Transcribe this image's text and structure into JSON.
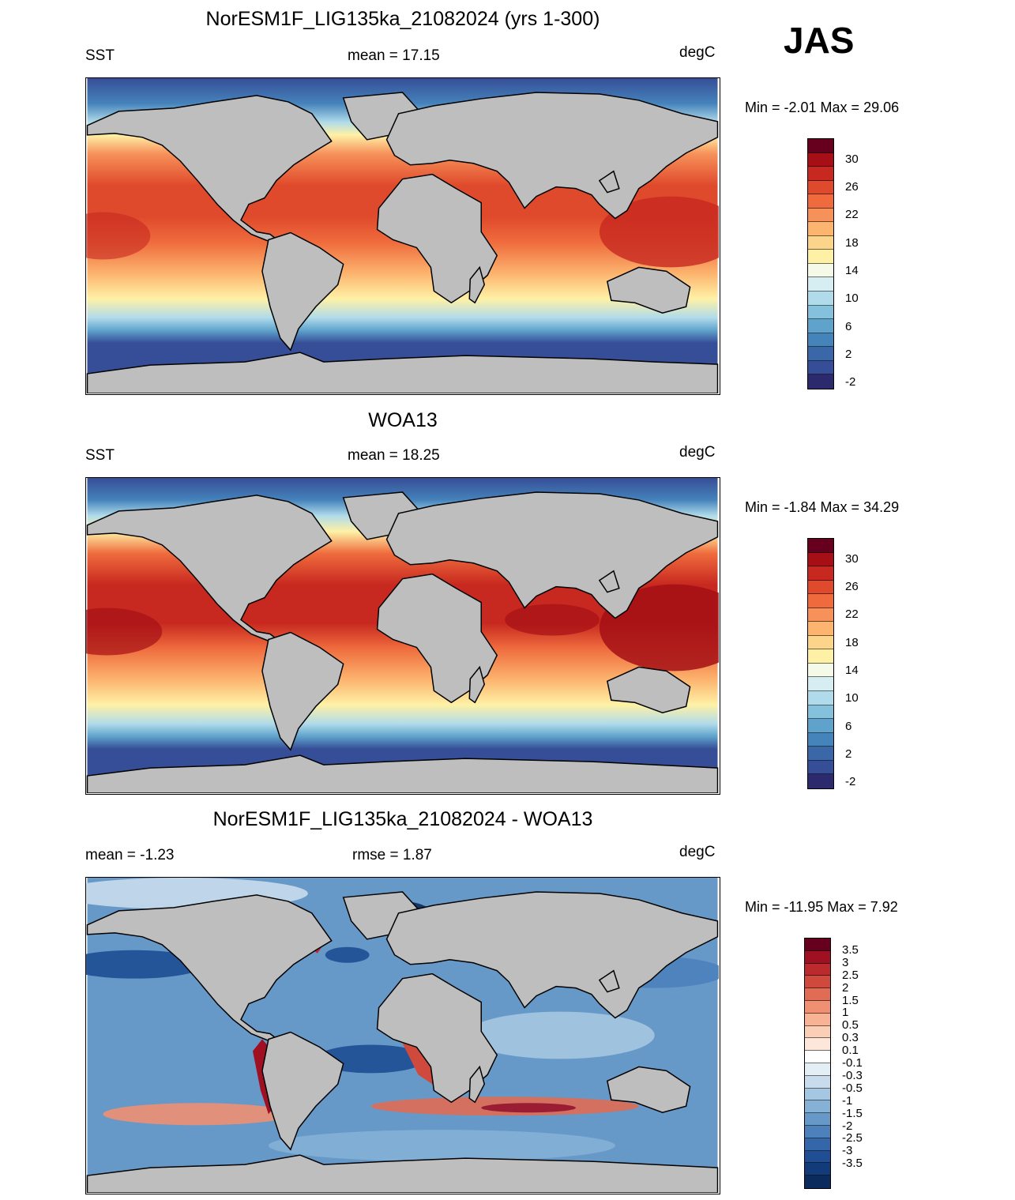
{
  "season": "JAS",
  "units": "degC",
  "panels": [
    {
      "title": "NorESM1F_LIG135ka_21082024 (yrs 1-300)",
      "left_label": "SST",
      "center_label": "mean =  17.15",
      "right_label": "degC",
      "stats": "Min =  -2.01 Max =  29.06"
    },
    {
      "title": "WOA13",
      "left_label": "SST",
      "center_label": "mean =  18.25",
      "right_label": "degC",
      "stats": "Min =  -1.84 Max =  34.29"
    },
    {
      "title": "NorESM1F_LIG135ka_21082024 - WOA13",
      "left_label": "mean =  -1.23",
      "center_label": "rmse =   1.87",
      "right_label": "degC",
      "stats": "Min = -11.95 Max =   7.92"
    }
  ],
  "sst_colorbar": {
    "labels": [
      "30",
      "26",
      "22",
      "18",
      "14",
      "10",
      "6",
      "2",
      "-2"
    ],
    "colors": [
      "#67001f",
      "#a50f15",
      "#c7281f",
      "#e04a2c",
      "#ef6b3d",
      "#f7915a",
      "#fcb46e",
      "#fdd58a",
      "#fef1a6",
      "#f4f9e8",
      "#d6eef2",
      "#b0dbea",
      "#84c1dd",
      "#5fa3cc",
      "#4583bb",
      "#3a67a8",
      "#364e97",
      "#2c2a6c"
    ]
  },
  "diff_colorbar": {
    "labels": [
      "3.5",
      "3",
      "2.5",
      "2",
      "1.5",
      "1",
      "0.5",
      "0.3",
      "0.1",
      "-0.1",
      "-0.3",
      "-0.5",
      "-1",
      "-1.5",
      "-2",
      "-2.5",
      "-3",
      "-3.5"
    ],
    "colors": [
      "#67001f",
      "#a01023",
      "#bb2a2c",
      "#cf4a3d",
      "#e06c55",
      "#ef9073",
      "#f7b394",
      "#fbcfb6",
      "#fde7da",
      "#ffffff",
      "#e4eef5",
      "#c8dced",
      "#a6c7e2",
      "#85b1d6",
      "#6699c8",
      "#4d81bb",
      "#3367aa",
      "#1f4e94",
      "#123b7a",
      "#0a2b5c"
    ]
  },
  "colors": {
    "land": "#bebebe",
    "ice": "#bebebe",
    "coast": "#000000"
  }
}
